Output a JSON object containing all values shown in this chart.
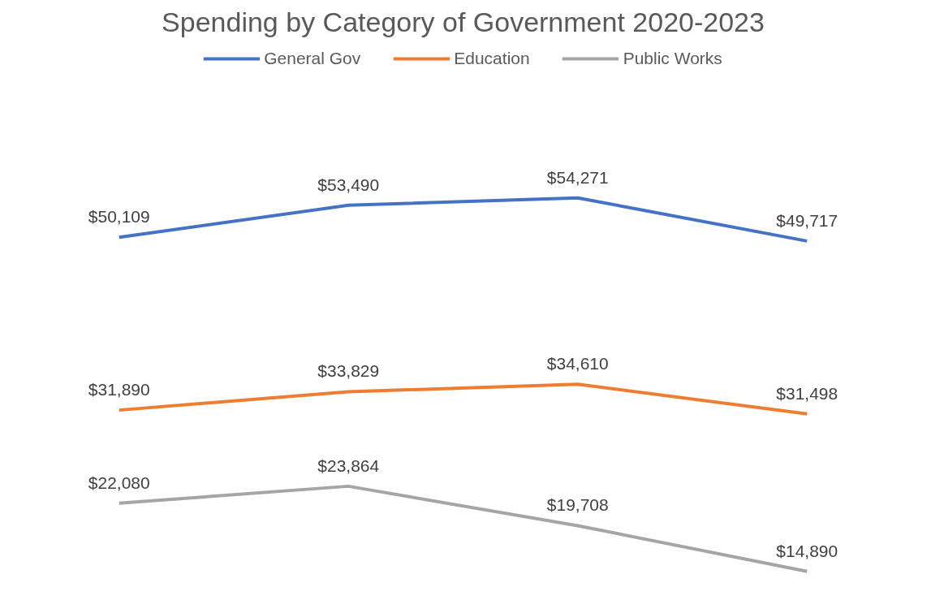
{
  "chart_data": {
    "type": "line",
    "title": "Spending by Category of Government 2020-2023",
    "categories": [
      null,
      null,
      null,
      null
    ],
    "series": [
      {
        "name": "General Gov",
        "color": "#4472c4",
        "values": [
          50109,
          53490,
          54271,
          49717
        ],
        "value_labels": [
          "$50,109",
          "$53,490",
          "$54,271",
          "$49,717"
        ]
      },
      {
        "name": "Education",
        "color": "#ed7d31",
        "values": [
          31890,
          33829,
          34610,
          31498
        ],
        "value_labels": [
          "$31,890",
          "$33,829",
          "$34,610",
          "$31,498"
        ]
      },
      {
        "name": "Public Works",
        "color": "#a5a5a5",
        "values": [
          22080,
          23864,
          19708,
          14890
        ],
        "value_labels": [
          "$22,080",
          "$23,864",
          "$19,708",
          "$14,890"
        ]
      }
    ],
    "legend": "top",
    "grid": false,
    "marker": "none",
    "line_style": "solid"
  }
}
